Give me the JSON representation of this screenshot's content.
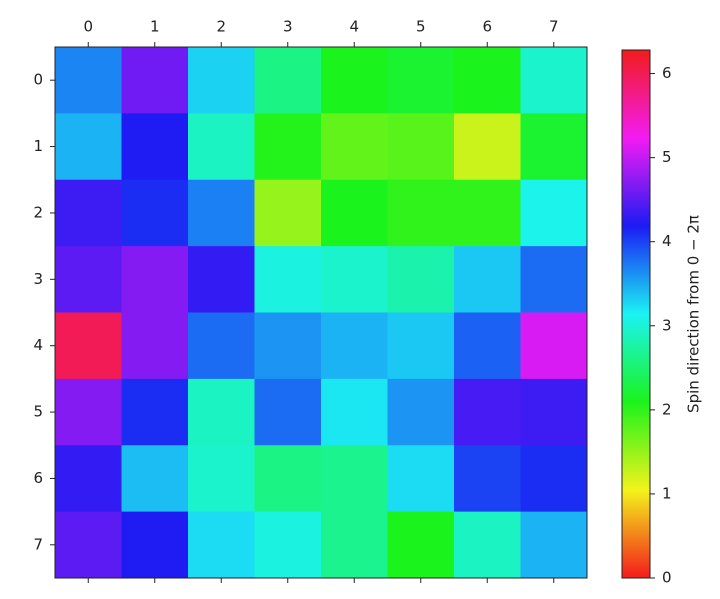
{
  "chart_data": {
    "type": "heatmap",
    "xticks": [
      0,
      1,
      2,
      3,
      4,
      5,
      6,
      7
    ],
    "yticks": [
      0,
      1,
      2,
      3,
      4,
      5,
      6,
      7
    ],
    "xlim": [
      -0.5,
      7.5
    ],
    "ylim": [
      7.5,
      -0.5
    ],
    "z": [
      [
        3.67,
        4.6,
        3.3,
        2.6,
        2.1,
        2.2,
        2.1,
        2.95
      ],
      [
        3.45,
        4.2,
        2.9,
        2.05,
        1.75,
        1.8,
        1.25,
        2.2
      ],
      [
        4.35,
        4.1,
        3.7,
        1.5,
        2.1,
        2.0,
        2.0,
        3.1
      ],
      [
        4.5,
        4.7,
        4.3,
        3.05,
        2.95,
        2.8,
        3.35,
        3.8
      ],
      [
        6.0,
        4.7,
        3.8,
        3.6,
        3.45,
        3.35,
        3.85,
        5.1
      ],
      [
        4.7,
        4.1,
        2.9,
        3.8,
        3.2,
        3.6,
        4.4,
        4.35
      ],
      [
        4.3,
        3.4,
        2.95,
        2.6,
        2.65,
        3.25,
        4.0,
        4.1
      ],
      [
        4.5,
        4.2,
        3.25,
        3.05,
        2.65,
        2.1,
        2.9,
        3.45
      ]
    ],
    "colormap": "hsv",
    "colorbar_lim": [
      0,
      6.28
    ],
    "colorbar_ticks": [
      0,
      1,
      2,
      3,
      4,
      5,
      6
    ],
    "colorbar_label": "Spin direction from 0 − 2π"
  }
}
